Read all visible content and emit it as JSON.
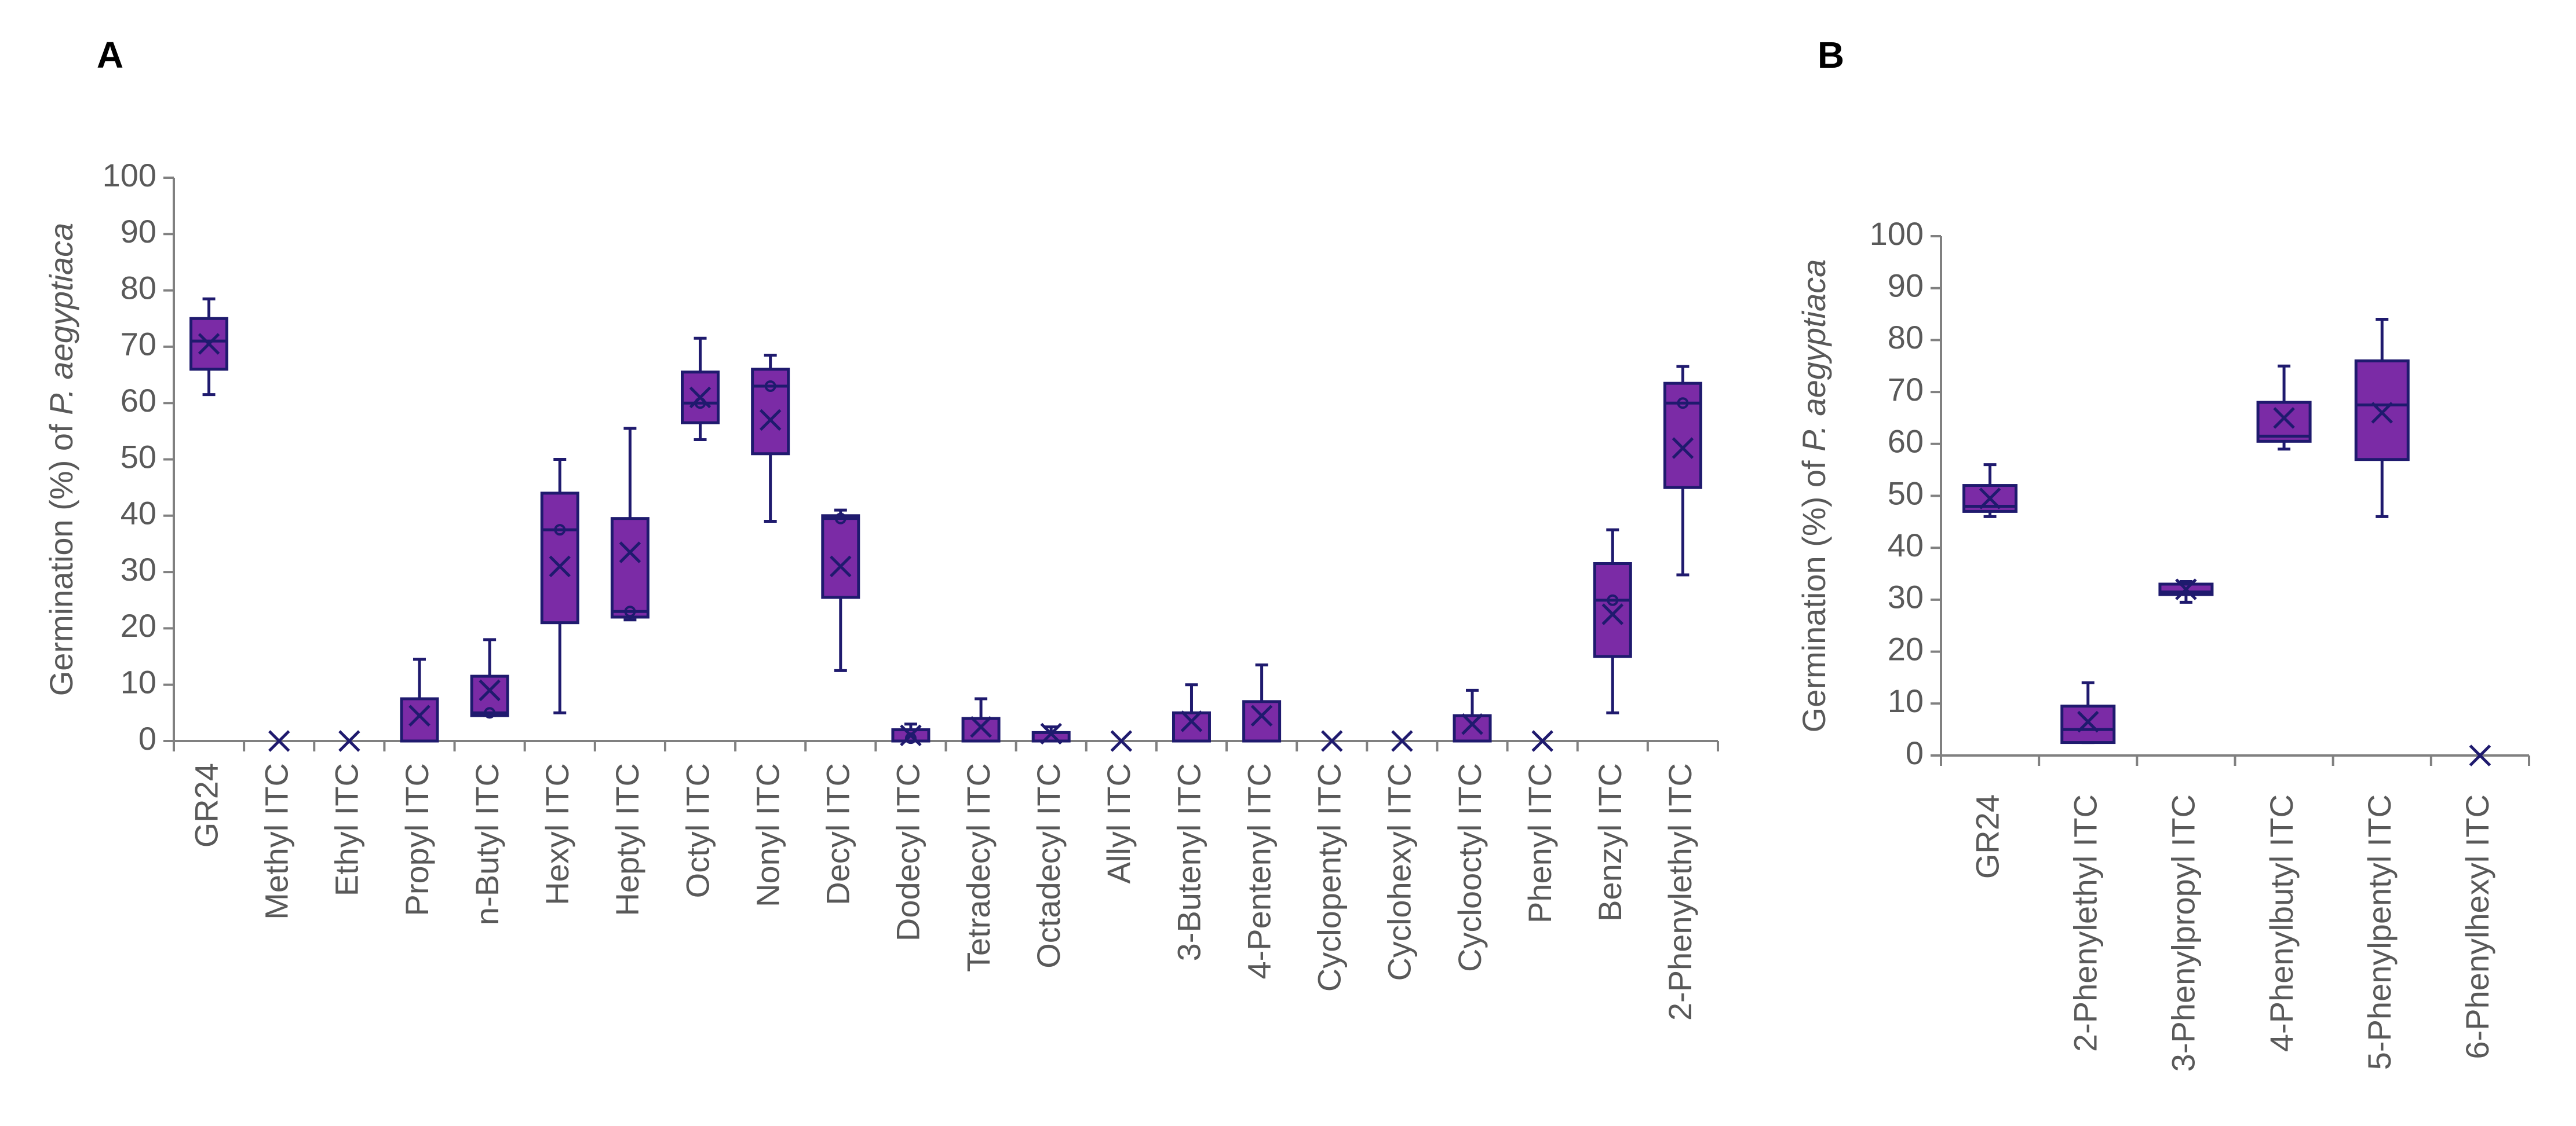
{
  "colors": {
    "box_fill": "#7B2BA6",
    "box_stroke": "#1F1A6E",
    "axis": "#808080",
    "text": "#595959"
  },
  "chart_data": [
    {
      "type": "box",
      "panel_label": "A",
      "ylabel": "Germination (%) of ",
      "ylabel_italic": "P. aegyptiaca",
      "ylim": [
        0,
        100
      ],
      "yticks": [
        "0",
        "10",
        "20",
        "30",
        "40",
        "50",
        "60",
        "70",
        "80",
        "90",
        "100"
      ],
      "categories": [
        "GR24",
        "Methyl ITC",
        "Ethyl ITC",
        "Propyl ITC",
        "n-Butyl ITC",
        "Hexyl ITC",
        "Heptyl ITC",
        "Octyl ITC",
        "Nonyl ITC",
        "Decyl ITC",
        "Dodecyl ITC",
        "Tetradecyl ITC",
        "Octadecyl ITC",
        "Allyl ITC",
        "3-Butenyl ITC",
        "4-Pentenyl ITC",
        "Cyclopentyl ITC",
        "Cyclohexyl ITC",
        "Cyclooctyl ITC",
        "Phenyl ITC",
        "Benzyl ITC",
        "2-Phenylethyl ITC"
      ],
      "boxes": [
        {
          "min": 61.5,
          "q1": 66,
          "median": 71,
          "q3": 75,
          "max": 78.5,
          "mean": 70.5,
          "outliers": []
        },
        {
          "min": 0,
          "q1": 0,
          "median": 0,
          "q3": 0,
          "max": 0,
          "mean": 0,
          "outliers": []
        },
        {
          "min": 0,
          "q1": 0,
          "median": 0,
          "q3": 0,
          "max": 0,
          "mean": 0,
          "outliers": []
        },
        {
          "min": 0,
          "q1": 0,
          "median": 0,
          "q3": 7.5,
          "max": 14.5,
          "mean": 4.5,
          "outliers": []
        },
        {
          "min": 4.5,
          "q1": 4.5,
          "median": 5,
          "q3": 11.5,
          "max": 18,
          "mean": 9,
          "outliers": [
            5
          ]
        },
        {
          "min": 5,
          "q1": 21,
          "median": 37.5,
          "q3": 44,
          "max": 50,
          "mean": 31,
          "outliers": [
            37.5
          ]
        },
        {
          "min": 21.5,
          "q1": 22,
          "median": 23,
          "q3": 39.5,
          "max": 55.5,
          "mean": 33.5,
          "outliers": [
            23
          ]
        },
        {
          "min": 53.5,
          "q1": 56.5,
          "median": 60,
          "q3": 65.5,
          "max": 71.5,
          "mean": 61,
          "outliers": [
            60
          ]
        },
        {
          "min": 39,
          "q1": 51,
          "median": 63,
          "q3": 66,
          "max": 68.5,
          "mean": 57,
          "outliers": [
            63
          ]
        },
        {
          "min": 12.5,
          "q1": 25.5,
          "median": 39.5,
          "q3": 40,
          "max": 41,
          "mean": 31,
          "outliers": [
            39.5
          ]
        },
        {
          "min": 0,
          "q1": 0,
          "median": 0,
          "q3": 2,
          "max": 3,
          "mean": 1,
          "outliers": [
            0.5
          ]
        },
        {
          "min": 0,
          "q1": 0,
          "median": 0,
          "q3": 4,
          "max": 7.5,
          "mean": 2.5,
          "outliers": []
        },
        {
          "min": 0,
          "q1": 0,
          "median": 0,
          "q3": 1.5,
          "max": 2.5,
          "mean": 1.3,
          "outliers": []
        },
        {
          "min": 0,
          "q1": 0,
          "median": 0,
          "q3": 0,
          "max": 0,
          "mean": 0,
          "outliers": []
        },
        {
          "min": 0,
          "q1": 0,
          "median": 0,
          "q3": 5,
          "max": 10,
          "mean": 3.5,
          "outliers": []
        },
        {
          "min": 0,
          "q1": 0,
          "median": 0,
          "q3": 7,
          "max": 13.5,
          "mean": 4.5,
          "outliers": []
        },
        {
          "min": 0,
          "q1": 0,
          "median": 0,
          "q3": 0,
          "max": 0,
          "mean": 0,
          "outliers": []
        },
        {
          "min": 0,
          "q1": 0,
          "median": 0,
          "q3": 0,
          "max": 0,
          "mean": 0,
          "outliers": []
        },
        {
          "min": 0,
          "q1": 0,
          "median": 0,
          "q3": 4.5,
          "max": 9,
          "mean": 3,
          "outliers": []
        },
        {
          "min": 0,
          "q1": 0,
          "median": 0,
          "q3": 0,
          "max": 0,
          "mean": 0,
          "outliers": []
        },
        {
          "min": 5,
          "q1": 15,
          "median": 25,
          "q3": 31.5,
          "max": 37.5,
          "mean": 22.5,
          "outliers": [
            25
          ]
        },
        {
          "min": 29.5,
          "q1": 45,
          "median": 60,
          "q3": 63.5,
          "max": 66.5,
          "mean": 52,
          "outliers": [
            60
          ]
        }
      ]
    },
    {
      "type": "box",
      "panel_label": "B",
      "ylabel": "Germination (%) of ",
      "ylabel_italic": "P. aegyptiaca",
      "ylim": [
        0,
        100
      ],
      "yticks": [
        "0",
        "10",
        "20",
        "30",
        "40",
        "50",
        "60",
        "70",
        "80",
        "90",
        "100"
      ],
      "categories": [
        "GR24",
        "2-Phenylethyl ITC",
        "3-Phenylpropyl ITC",
        "4-Phenylbutyl ITC",
        "5-Phenylpentyl ITC",
        "6-Phenylhexyl ITC"
      ],
      "boxes": [
        {
          "min": 46,
          "q1": 47,
          "median": 48,
          "q3": 52,
          "max": 56,
          "mean": 49.5,
          "outliers": []
        },
        {
          "min": 2.5,
          "q1": 2.5,
          "median": 5,
          "q3": 9.5,
          "max": 14,
          "mean": 6.5,
          "outliers": []
        },
        {
          "min": 29.5,
          "q1": 31,
          "median": 31.5,
          "q3": 33,
          "max": 33.5,
          "mean": 32,
          "outliers": []
        },
        {
          "min": 59,
          "q1": 60.5,
          "median": 61.5,
          "q3": 68,
          "max": 75,
          "mean": 65,
          "outliers": []
        },
        {
          "min": 46,
          "q1": 57,
          "median": 67.5,
          "q3": 76,
          "max": 84,
          "mean": 66,
          "outliers": []
        },
        {
          "min": 0,
          "q1": 0,
          "median": 0,
          "q3": 0,
          "max": 0,
          "mean": 0,
          "outliers": []
        }
      ]
    }
  ]
}
